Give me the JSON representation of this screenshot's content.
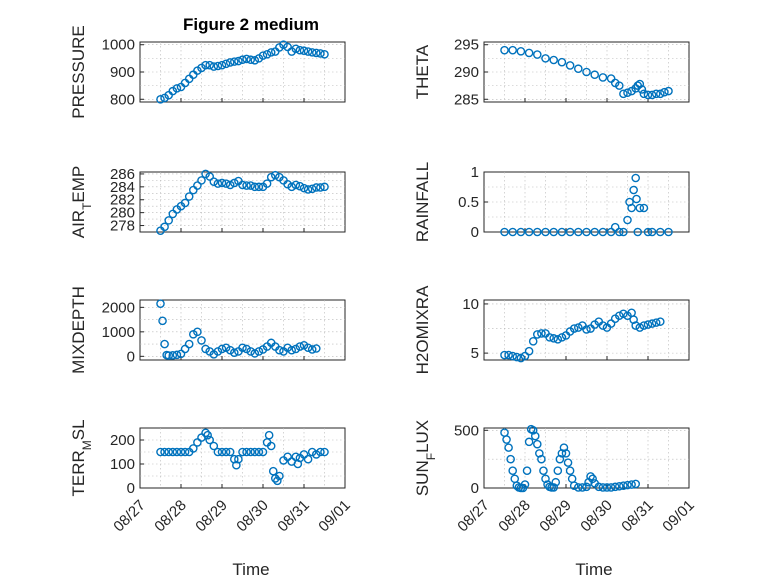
{
  "title": "Figure 2 medium",
  "colors": {
    "series": "#0072BD",
    "axis": "#262626"
  },
  "x_tick_labels": [
    "08/27",
    "08/28",
    "08/29",
    "08/30",
    "08/31",
    "09/01"
  ],
  "xlabel": "Time",
  "chart_data": [
    {
      "type": "scatter",
      "ylabel": "PRESSURE",
      "ylim": [
        790,
        1010
      ],
      "yticks": [
        800,
        900,
        1000
      ],
      "ytick_labels": [
        "800",
        "900",
        "1000"
      ],
      "grid": true,
      "points": [
        [
          0.5,
          800
        ],
        [
          0.6,
          805
        ],
        [
          0.7,
          815
        ],
        [
          0.8,
          830
        ],
        [
          0.9,
          840
        ],
        [
          1.0,
          845
        ],
        [
          1.1,
          860
        ],
        [
          1.2,
          875
        ],
        [
          1.3,
          890
        ],
        [
          1.4,
          905
        ],
        [
          1.5,
          915
        ],
        [
          1.6,
          925
        ],
        [
          1.7,
          925
        ],
        [
          1.8,
          920
        ],
        [
          1.9,
          922
        ],
        [
          2.0,
          925
        ],
        [
          2.1,
          930
        ],
        [
          2.2,
          935
        ],
        [
          2.3,
          938
        ],
        [
          2.4,
          940
        ],
        [
          2.5,
          945
        ],
        [
          2.6,
          948
        ],
        [
          2.7,
          945
        ],
        [
          2.8,
          943
        ],
        [
          2.9,
          950
        ],
        [
          3.0,
          960
        ],
        [
          3.1,
          965
        ],
        [
          3.2,
          972
        ],
        [
          3.3,
          975
        ],
        [
          3.4,
          990
        ],
        [
          3.5,
          1000
        ],
        [
          3.6,
          992
        ],
        [
          3.7,
          975
        ],
        [
          3.8,
          985
        ],
        [
          3.9,
          980
        ],
        [
          4.0,
          978
        ],
        [
          4.1,
          975
        ],
        [
          4.2,
          972
        ],
        [
          4.3,
          970
        ],
        [
          4.4,
          968
        ],
        [
          4.5,
          965
        ]
      ]
    },
    {
      "type": "scatter",
      "ylabel": "THETA",
      "ylim": [
        284.5,
        295.5
      ],
      "yticks": [
        285,
        290,
        295
      ],
      "ytick_labels": [
        "285",
        "290",
        "295"
      ],
      "grid": true,
      "points": [
        [
          0.5,
          294
        ],
        [
          0.7,
          294
        ],
        [
          0.9,
          293.8
        ],
        [
          1.1,
          293.5
        ],
        [
          1.3,
          293.2
        ],
        [
          1.5,
          292.5
        ],
        [
          1.7,
          292.2
        ],
        [
          1.9,
          291.8
        ],
        [
          2.1,
          291.2
        ],
        [
          2.3,
          290.6
        ],
        [
          2.5,
          290
        ],
        [
          2.7,
          289.5
        ],
        [
          2.9,
          289
        ],
        [
          3.1,
          288.8
        ],
        [
          3.2,
          288
        ],
        [
          3.3,
          287.5
        ],
        [
          3.4,
          286
        ],
        [
          3.5,
          286.2
        ],
        [
          3.6,
          286.5
        ],
        [
          3.7,
          287
        ],
        [
          3.75,
          287.5
        ],
        [
          3.8,
          287.8
        ],
        [
          3.85,
          286.8
        ],
        [
          3.9,
          286
        ],
        [
          4.0,
          285.8
        ],
        [
          4.1,
          285.8
        ],
        [
          4.2,
          286
        ],
        [
          4.3,
          286
        ],
        [
          4.4,
          286.3
        ],
        [
          4.5,
          286.5
        ]
      ]
    },
    {
      "type": "scatter",
      "ylabel": "AIR_TEMP",
      "ylim": [
        277,
        286.3
      ],
      "yticks": [
        278,
        280,
        282,
        284,
        286
      ],
      "ytick_labels": [
        "278",
        "280",
        "282",
        "284",
        "286"
      ],
      "grid": true,
      "points": [
        [
          0.5,
          277.2
        ],
        [
          0.6,
          277.8
        ],
        [
          0.7,
          278.8
        ],
        [
          0.8,
          279.8
        ],
        [
          0.9,
          280.5
        ],
        [
          1.0,
          281
        ],
        [
          1.1,
          281.5
        ],
        [
          1.2,
          282.5
        ],
        [
          1.3,
          283.5
        ],
        [
          1.4,
          284.2
        ],
        [
          1.5,
          285
        ],
        [
          1.6,
          286
        ],
        [
          1.7,
          285.6
        ],
        [
          1.8,
          284.8
        ],
        [
          1.9,
          284.5
        ],
        [
          2.0,
          284.6
        ],
        [
          2.1,
          284.5
        ],
        [
          2.2,
          284.3
        ],
        [
          2.3,
          284.6
        ],
        [
          2.4,
          284.9
        ],
        [
          2.5,
          284.3
        ],
        [
          2.6,
          284.2
        ],
        [
          2.7,
          284.2
        ],
        [
          2.8,
          284
        ],
        [
          2.9,
          284
        ],
        [
          3.0,
          284
        ],
        [
          3.1,
          284.5
        ],
        [
          3.2,
          285.5
        ],
        [
          3.3,
          285.8
        ],
        [
          3.4,
          285.5
        ],
        [
          3.5,
          285
        ],
        [
          3.6,
          284.4
        ],
        [
          3.7,
          284
        ],
        [
          3.8,
          284.3
        ],
        [
          3.9,
          284.1
        ],
        [
          4.0,
          283.8
        ],
        [
          4.1,
          283.6
        ],
        [
          4.2,
          283.7
        ],
        [
          4.3,
          283.9
        ],
        [
          4.4,
          283.9
        ],
        [
          4.5,
          284
        ]
      ]
    },
    {
      "type": "scatter",
      "ylabel": "RAINFALL",
      "ylim": [
        0,
        1
      ],
      "yticks": [
        0,
        0.5,
        1
      ],
      "ytick_labels": [
        "0",
        "0.5",
        "1"
      ],
      "grid": true,
      "points": [
        [
          0.5,
          0
        ],
        [
          0.7,
          0
        ],
        [
          0.9,
          0
        ],
        [
          1.1,
          0
        ],
        [
          1.3,
          0
        ],
        [
          1.5,
          0
        ],
        [
          1.7,
          0
        ],
        [
          1.9,
          0
        ],
        [
          2.1,
          0
        ],
        [
          2.3,
          0
        ],
        [
          2.5,
          0
        ],
        [
          2.7,
          0
        ],
        [
          2.9,
          0
        ],
        [
          3.1,
          0
        ],
        [
          3.2,
          0.08
        ],
        [
          3.3,
          0
        ],
        [
          3.4,
          0
        ],
        [
          3.5,
          0.2
        ],
        [
          3.55,
          0.5
        ],
        [
          3.6,
          0.4
        ],
        [
          3.65,
          0.7
        ],
        [
          3.7,
          0.9
        ],
        [
          3.72,
          0.55
        ],
        [
          3.75,
          0
        ],
        [
          3.8,
          0.4
        ],
        [
          3.9,
          0.4
        ],
        [
          4.0,
          0
        ],
        [
          4.1,
          0
        ],
        [
          4.3,
          0
        ],
        [
          4.5,
          0
        ]
      ]
    },
    {
      "type": "scatter",
      "ylabel": "MIXDEPTH",
      "ylim": [
        -150,
        2300
      ],
      "yticks": [
        0,
        1000,
        2000
      ],
      "ytick_labels": [
        "0",
        "1000",
        "2000"
      ],
      "grid": true,
      "points": [
        [
          0.5,
          2150
        ],
        [
          0.55,
          1450
        ],
        [
          0.6,
          500
        ],
        [
          0.65,
          50
        ],
        [
          0.7,
          30
        ],
        [
          0.8,
          40
        ],
        [
          0.9,
          60
        ],
        [
          1.0,
          100
        ],
        [
          1.1,
          300
        ],
        [
          1.2,
          500
        ],
        [
          1.3,
          900
        ],
        [
          1.4,
          1000
        ],
        [
          1.5,
          650
        ],
        [
          1.6,
          300
        ],
        [
          1.7,
          200
        ],
        [
          1.8,
          80
        ],
        [
          1.9,
          200
        ],
        [
          2.0,
          300
        ],
        [
          2.1,
          350
        ],
        [
          2.2,
          250
        ],
        [
          2.3,
          150
        ],
        [
          2.4,
          200
        ],
        [
          2.5,
          350
        ],
        [
          2.6,
          300
        ],
        [
          2.7,
          200
        ],
        [
          2.8,
          120
        ],
        [
          2.9,
          200
        ],
        [
          3.0,
          280
        ],
        [
          3.1,
          400
        ],
        [
          3.2,
          550
        ],
        [
          3.3,
          400
        ],
        [
          3.4,
          250
        ],
        [
          3.5,
          200
        ],
        [
          3.6,
          350
        ],
        [
          3.7,
          250
        ],
        [
          3.8,
          300
        ],
        [
          3.9,
          400
        ],
        [
          4.0,
          450
        ],
        [
          4.1,
          350
        ],
        [
          4.2,
          280
        ],
        [
          4.3,
          320
        ]
      ]
    },
    {
      "type": "scatter",
      "ylabel": "H2OMIXRA",
      "ylim": [
        4.3,
        10.4
      ],
      "yticks": [
        5,
        10
      ],
      "ytick_labels": [
        "5",
        "10"
      ],
      "grid": true,
      "points": [
        [
          0.5,
          4.8
        ],
        [
          0.6,
          4.8
        ],
        [
          0.7,
          4.7
        ],
        [
          0.8,
          4.6
        ],
        [
          0.9,
          4.5
        ],
        [
          1.0,
          4.7
        ],
        [
          1.1,
          5.2
        ],
        [
          1.2,
          6.2
        ],
        [
          1.3,
          6.9
        ],
        [
          1.4,
          7.0
        ],
        [
          1.5,
          7.0
        ],
        [
          1.6,
          6.6
        ],
        [
          1.7,
          6.5
        ],
        [
          1.8,
          6.4
        ],
        [
          1.9,
          6.6
        ],
        [
          2.0,
          6.8
        ],
        [
          2.1,
          7.2
        ],
        [
          2.2,
          7.5
        ],
        [
          2.3,
          7.6
        ],
        [
          2.4,
          7.8
        ],
        [
          2.5,
          7.4
        ],
        [
          2.6,
          7.5
        ],
        [
          2.7,
          7.9
        ],
        [
          2.8,
          8.2
        ],
        [
          2.9,
          7.8
        ],
        [
          3.0,
          7.6
        ],
        [
          3.1,
          8.0
        ],
        [
          3.2,
          8.5
        ],
        [
          3.3,
          8.8
        ],
        [
          3.4,
          9.0
        ],
        [
          3.5,
          8.8
        ],
        [
          3.6,
          9.1
        ],
        [
          3.65,
          8.4
        ],
        [
          3.7,
          7.8
        ],
        [
          3.8,
          7.6
        ],
        [
          3.9,
          7.8
        ],
        [
          4.0,
          7.9
        ],
        [
          4.1,
          8.0
        ],
        [
          4.2,
          8.1
        ],
        [
          4.3,
          8.2
        ]
      ]
    },
    {
      "type": "scatter",
      "ylabel": "TERR_MSL",
      "ylim": [
        0,
        250
      ],
      "yticks": [
        0,
        100,
        200
      ],
      "ytick_labels": [
        "0",
        "100",
        "200"
      ],
      "grid": true,
      "points": [
        [
          0.5,
          150
        ],
        [
          0.6,
          150
        ],
        [
          0.7,
          150
        ],
        [
          0.8,
          150
        ],
        [
          0.9,
          150
        ],
        [
          1.0,
          150
        ],
        [
          1.1,
          150
        ],
        [
          1.2,
          150
        ],
        [
          1.3,
          165
        ],
        [
          1.4,
          190
        ],
        [
          1.5,
          210
        ],
        [
          1.6,
          230
        ],
        [
          1.65,
          220
        ],
        [
          1.7,
          200
        ],
        [
          1.8,
          175
        ],
        [
          1.9,
          150
        ],
        [
          2.0,
          150
        ],
        [
          2.1,
          150
        ],
        [
          2.2,
          150
        ],
        [
          2.3,
          120
        ],
        [
          2.35,
          95
        ],
        [
          2.4,
          120
        ],
        [
          2.5,
          150
        ],
        [
          2.6,
          150
        ],
        [
          2.7,
          150
        ],
        [
          2.8,
          150
        ],
        [
          2.9,
          150
        ],
        [
          3.0,
          150
        ],
        [
          3.1,
          190
        ],
        [
          3.15,
          220
        ],
        [
          3.2,
          175
        ],
        [
          3.25,
          70
        ],
        [
          3.3,
          40
        ],
        [
          3.35,
          30
        ],
        [
          3.4,
          50
        ],
        [
          3.5,
          115
        ],
        [
          3.6,
          130
        ],
        [
          3.7,
          110
        ],
        [
          3.8,
          130
        ],
        [
          3.85,
          100
        ],
        [
          3.9,
          125
        ],
        [
          4.0,
          140
        ],
        [
          4.1,
          120
        ],
        [
          4.2,
          150
        ],
        [
          4.3,
          140
        ],
        [
          4.4,
          150
        ],
        [
          4.5,
          150
        ]
      ]
    },
    {
      "type": "scatter",
      "ylabel": "SUN_FLUX",
      "ylim": [
        0,
        520
      ],
      "yticks": [
        0,
        500
      ],
      "ytick_labels": [
        "0",
        "500"
      ],
      "grid": true,
      "points": [
        [
          0.5,
          480
        ],
        [
          0.55,
          420
        ],
        [
          0.6,
          350
        ],
        [
          0.65,
          250
        ],
        [
          0.7,
          150
        ],
        [
          0.75,
          80
        ],
        [
          0.8,
          20
        ],
        [
          0.85,
          5
        ],
        [
          0.9,
          0
        ],
        [
          0.95,
          0
        ],
        [
          1.0,
          30
        ],
        [
          1.05,
          150
        ],
        [
          1.1,
          400
        ],
        [
          1.15,
          510
        ],
        [
          1.2,
          500
        ],
        [
          1.25,
          450
        ],
        [
          1.3,
          380
        ],
        [
          1.35,
          300
        ],
        [
          1.4,
          250
        ],
        [
          1.45,
          150
        ],
        [
          1.5,
          80
        ],
        [
          1.55,
          30
        ],
        [
          1.6,
          10
        ],
        [
          1.65,
          5
        ],
        [
          1.7,
          5
        ],
        [
          1.75,
          50
        ],
        [
          1.8,
          150
        ],
        [
          1.85,
          250
        ],
        [
          1.9,
          300
        ],
        [
          1.95,
          350
        ],
        [
          2.0,
          300
        ],
        [
          2.05,
          220
        ],
        [
          2.1,
          150
        ],
        [
          2.15,
          80
        ],
        [
          2.2,
          20
        ],
        [
          2.3,
          5
        ],
        [
          2.4,
          5
        ],
        [
          2.5,
          10
        ],
        [
          2.55,
          50
        ],
        [
          2.6,
          100
        ],
        [
          2.65,
          80
        ],
        [
          2.7,
          40
        ],
        [
          2.8,
          10
        ],
        [
          2.9,
          5
        ],
        [
          3.0,
          5
        ],
        [
          3.1,
          5
        ],
        [
          3.2,
          10
        ],
        [
          3.3,
          15
        ],
        [
          3.4,
          20
        ],
        [
          3.5,
          25
        ],
        [
          3.6,
          30
        ],
        [
          3.7,
          35
        ]
      ]
    }
  ]
}
